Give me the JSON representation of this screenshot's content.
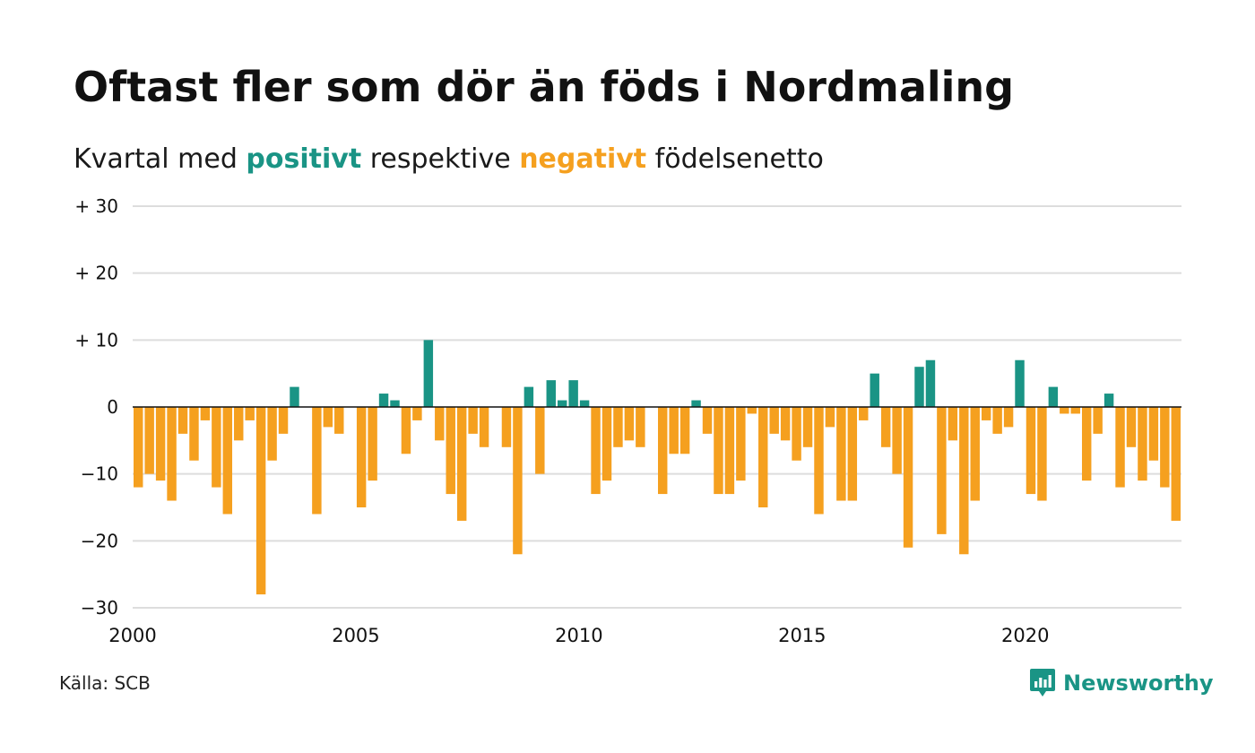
{
  "title": "Oftast fler som dör än föds i Nordmaling",
  "subtitle": {
    "prefix": "Kvartal med ",
    "positive_word": "positivt",
    "middle": " respektive ",
    "negative_word": "negativt",
    "suffix": " födelsenetto"
  },
  "source": "Källa: SCB",
  "logo": {
    "text": "Newsworthy",
    "icon": "newsworthy-chart-bubble-icon"
  },
  "colors": {
    "positive": "#1a9485",
    "negative": "#f5a01f",
    "grid": "#dddddd",
    "zero": "#111111"
  },
  "chart_data": {
    "type": "bar",
    "title": "Oftast fler som dör än föds i Nordmaling",
    "subtitle": "Kvartal med positivt respektive negativt födelsenetto",
    "x_start": 2000,
    "x_end": 2023.5,
    "x_ticks": [
      2000,
      2005,
      2010,
      2015,
      2020
    ],
    "x_tick_labels": [
      "2000",
      "2005",
      "2010",
      "2015",
      "2020"
    ],
    "y_ticks": [
      30,
      20,
      10,
      0,
      -10,
      -20,
      -30
    ],
    "y_tick_labels": [
      "+ 30",
      "+ 20",
      "+ 10",
      "0",
      "−10",
      "−20",
      "−30"
    ],
    "ylim": [
      -30,
      30
    ],
    "grid": true,
    "categories": [
      "2000 K1",
      "2000 K2",
      "2000 K3",
      "2000 K4",
      "2001 K1",
      "2001 K2",
      "2001 K3",
      "2001 K4",
      "2002 K1",
      "2002 K2",
      "2002 K3",
      "2002 K4",
      "2003 K1",
      "2003 K2",
      "2003 K3",
      "2003 K4",
      "2004 K1",
      "2004 K2",
      "2004 K3",
      "2004 K4",
      "2005 K1",
      "2005 K2",
      "2005 K3",
      "2005 K4",
      "2006 K1",
      "2006 K2",
      "2006 K3",
      "2006 K4",
      "2007 K1",
      "2007 K2",
      "2007 K3",
      "2007 K4",
      "2008 K1",
      "2008 K2",
      "2008 K3",
      "2008 K4",
      "2009 K1",
      "2009 K2",
      "2009 K3",
      "2009 K4",
      "2010 K1",
      "2010 K2",
      "2010 K3",
      "2010 K4",
      "2011 K1",
      "2011 K2",
      "2011 K3",
      "2011 K4",
      "2012 K1",
      "2012 K2",
      "2012 K3",
      "2012 K4",
      "2013 K1",
      "2013 K2",
      "2013 K3",
      "2013 K4",
      "2014 K1",
      "2014 K2",
      "2014 K3",
      "2014 K4",
      "2015 K1",
      "2015 K2",
      "2015 K3",
      "2015 K4",
      "2016 K1",
      "2016 K2",
      "2016 K3",
      "2016 K4",
      "2017 K1",
      "2017 K2",
      "2017 K3",
      "2017 K4",
      "2018 K1",
      "2018 K2",
      "2018 K3",
      "2018 K4",
      "2019 K1",
      "2019 K2",
      "2019 K3",
      "2019 K4",
      "2020 K1",
      "2020 K2",
      "2020 K3",
      "2020 K4",
      "2021 K1",
      "2021 K2",
      "2021 K3",
      "2021 K4",
      "2022 K1",
      "2022 K2",
      "2022 K3",
      "2022 K4",
      "2023 K1",
      "2023 K2"
    ],
    "values": [
      -12,
      -10,
      -11,
      -14,
      -4,
      -8,
      -2,
      -12,
      -16,
      -5,
      -2,
      -28,
      -8,
      -4,
      3,
      0,
      -16,
      -3,
      -4,
      0,
      -15,
      -11,
      2,
      1,
      -7,
      -2,
      10,
      -5,
      -13,
      -17,
      -4,
      -6,
      0,
      -6,
      -22,
      3,
      -10,
      4,
      1,
      4,
      1,
      -13,
      -11,
      -6,
      -5,
      -6,
      0,
      -13,
      -7,
      -7,
      1,
      -4,
      -13,
      -13,
      -11,
      -1,
      -15,
      -4,
      -5,
      -8,
      -6,
      -16,
      -3,
      -14,
      -14,
      -2,
      5,
      -6,
      -10,
      -21,
      6,
      7,
      -19,
      -5,
      -22,
      -14,
      -2,
      -4,
      -3,
      7,
      -13,
      -14,
      3,
      -1,
      -1,
      -11,
      -4,
      2,
      -12,
      -6,
      -11,
      -8,
      -12,
      -17
    ]
  }
}
